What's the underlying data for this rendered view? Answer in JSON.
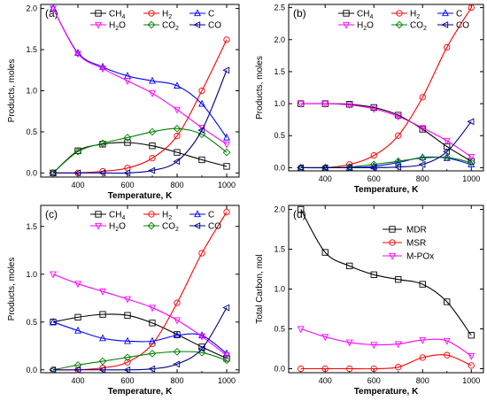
{
  "chart_data": [
    {
      "type": "line",
      "panel_label": "(a)",
      "xlabel": "Temperature, K",
      "ylabel": "Products, moles",
      "xlim": [
        250,
        1050
      ],
      "ylim": [
        -0.05,
        2.05
      ],
      "xticks": [
        400,
        600,
        800,
        1000
      ],
      "xtick_labels": [
        "400",
        "600",
        "800",
        "1000"
      ],
      "yticks": [
        0.0,
        0.5,
        1.0,
        1.5,
        2.0
      ],
      "ytick_labels": [
        "0.0",
        "0.5",
        "1.0",
        "1.5",
        "2.0"
      ],
      "legend_position": "top",
      "x": [
        300,
        400,
        500,
        600,
        700,
        800,
        900,
        1000
      ],
      "series": [
        {
          "name": "CH4",
          "name_main": "CH",
          "name_sub": "4",
          "color": "#000000",
          "marker": "square",
          "values": [
            0.0,
            0.27,
            0.35,
            0.37,
            0.33,
            0.25,
            0.16,
            0.08
          ]
        },
        {
          "name": "H2",
          "name_main": "H",
          "name_sub": "2",
          "color": "#ff0000",
          "marker": "circle",
          "values": [
            0.0,
            0.0,
            0.02,
            0.06,
            0.18,
            0.45,
            1.0,
            1.62
          ]
        },
        {
          "name": "C",
          "name_main": "C",
          "name_sub": "",
          "color": "#0000ff",
          "marker": "triangle-up",
          "values": [
            2.0,
            1.46,
            1.29,
            1.18,
            1.12,
            1.06,
            0.84,
            0.43
          ]
        },
        {
          "name": "H2O",
          "name_main": "H",
          "name_sub": "2",
          "name_tail": "O",
          "color": "#ff00ff",
          "marker": "triangle-down",
          "values": [
            2.0,
            1.45,
            1.27,
            1.12,
            0.97,
            0.77,
            0.55,
            0.35
          ]
        },
        {
          "name": "CO2",
          "name_main": "CO",
          "name_sub": "2",
          "color": "#008000",
          "marker": "diamond",
          "values": [
            0.0,
            0.26,
            0.36,
            0.43,
            0.5,
            0.54,
            0.47,
            0.25
          ]
        },
        {
          "name": "CO",
          "name_main": "CO",
          "name_sub": "",
          "color": "#00008b",
          "marker": "triangle-left",
          "values": [
            0.0,
            0.0,
            0.0,
            0.0,
            0.03,
            0.14,
            0.52,
            1.25
          ]
        }
      ]
    },
    {
      "type": "line",
      "panel_label": "(b)",
      "xlabel": "Temperature, K",
      "ylabel": "Products, moles",
      "xlim": [
        250,
        1050
      ],
      "ylim": [
        -0.05,
        2.55
      ],
      "xticks": [
        400,
        600,
        800,
        1000
      ],
      "xtick_labels": [
        "400",
        "600",
        "800",
        "1000"
      ],
      "yticks": [
        0.0,
        0.5,
        1.0,
        1.5,
        2.0,
        2.5
      ],
      "ytick_labels": [
        "0.0",
        "0.5",
        "1.0",
        "1.5",
        "2.0",
        "2.5"
      ],
      "legend_position": "top",
      "x": [
        300,
        400,
        500,
        600,
        700,
        800,
        900,
        1000
      ],
      "series": [
        {
          "name": "CH4",
          "name_main": "CH",
          "name_sub": "4",
          "color": "#000000",
          "marker": "square",
          "values": [
            1.0,
            1.0,
            0.99,
            0.94,
            0.82,
            0.6,
            0.33,
            0.1
          ]
        },
        {
          "name": "H2",
          "name_main": "H",
          "name_sub": "2",
          "color": "#ff0000",
          "marker": "circle",
          "values": [
            0.0,
            0.0,
            0.05,
            0.19,
            0.5,
            1.1,
            1.88,
            2.5
          ]
        },
        {
          "name": "C",
          "name_main": "C",
          "name_sub": "",
          "color": "#0000ff",
          "marker": "triangle-up",
          "values": [
            0.0,
            0.0,
            0.0,
            0.02,
            0.08,
            0.16,
            0.15,
            0.05
          ]
        },
        {
          "name": "H2O",
          "name_main": "H",
          "name_sub": "2",
          "name_tail": "O",
          "color": "#ff00ff",
          "marker": "triangle-down",
          "values": [
            1.0,
            1.0,
            0.98,
            0.92,
            0.8,
            0.62,
            0.42,
            0.17
          ]
        },
        {
          "name": "CO2",
          "name_main": "CO",
          "name_sub": "2",
          "color": "#008000",
          "marker": "diamond",
          "values": [
            0.0,
            0.0,
            0.01,
            0.05,
            0.1,
            0.15,
            0.16,
            0.08
          ]
        },
        {
          "name": "CO",
          "name_main": "CO",
          "name_sub": "",
          "color": "#00008b",
          "marker": "triangle-left",
          "values": [
            0.0,
            0.0,
            0.0,
            0.0,
            0.01,
            0.05,
            0.25,
            0.72
          ]
        }
      ]
    },
    {
      "type": "line",
      "panel_label": "(c)",
      "xlabel": "Temperature, K",
      "ylabel": "Products, moles",
      "xlim": [
        250,
        1050
      ],
      "ylim": [
        -0.03,
        1.72
      ],
      "xticks": [
        400,
        600,
        800,
        1000
      ],
      "xtick_labels": [
        "400",
        "600",
        "800",
        "1000"
      ],
      "yticks": [
        0.0,
        0.5,
        1.0,
        1.5
      ],
      "ytick_labels": [
        "0.0",
        "0.5",
        "1.0",
        "1.5"
      ],
      "legend_position": "top",
      "x": [
        300,
        400,
        500,
        600,
        700,
        800,
        900,
        1000
      ],
      "series": [
        {
          "name": "CH4",
          "name_main": "CH",
          "name_sub": "4",
          "color": "#000000",
          "marker": "square",
          "values": [
            0.5,
            0.55,
            0.58,
            0.57,
            0.49,
            0.37,
            0.24,
            0.12
          ]
        },
        {
          "name": "H2",
          "name_main": "H",
          "name_sub": "2",
          "color": "#ff0000",
          "marker": "circle",
          "values": [
            0.0,
            0.0,
            0.02,
            0.08,
            0.27,
            0.7,
            1.22,
            1.65
          ]
        },
        {
          "name": "C",
          "name_main": "C",
          "name_sub": "",
          "color": "#0000ff",
          "marker": "triangle-up",
          "values": [
            0.5,
            0.41,
            0.33,
            0.3,
            0.3,
            0.36,
            0.36,
            0.17
          ]
        },
        {
          "name": "H2O",
          "name_main": "H",
          "name_sub": "2",
          "name_tail": "O",
          "color": "#ff00ff",
          "marker": "triangle-down",
          "values": [
            1.0,
            0.9,
            0.82,
            0.74,
            0.65,
            0.52,
            0.35,
            0.15
          ]
        },
        {
          "name": "CO2",
          "name_main": "CO",
          "name_sub": "2",
          "color": "#008000",
          "marker": "diamond",
          "values": [
            0.0,
            0.05,
            0.09,
            0.13,
            0.17,
            0.19,
            0.18,
            0.1
          ]
        },
        {
          "name": "CO",
          "name_main": "CO",
          "name_sub": "",
          "color": "#00008b",
          "marker": "triangle-left",
          "values": [
            0.0,
            0.0,
            0.0,
            0.0,
            0.01,
            0.06,
            0.22,
            0.65
          ]
        }
      ]
    },
    {
      "type": "line",
      "panel_label": "(d)",
      "xlabel": "Temperature, K",
      "ylabel": "Total Carbon, mol",
      "xlim": [
        250,
        1050
      ],
      "ylim": [
        -0.05,
        2.05
      ],
      "xticks": [
        400,
        600,
        800,
        1000
      ],
      "xtick_labels": [
        "400",
        "600",
        "800",
        "1000"
      ],
      "yticks": [
        0.0,
        0.5,
        1.0,
        1.5,
        2.0
      ],
      "ytick_labels": [
        "0.0",
        "0.5",
        "1.0",
        "1.5",
        "2.0"
      ],
      "legend_position": "top-right",
      "x": [
        300,
        400,
        500,
        600,
        700,
        800,
        900,
        1000
      ],
      "series": [
        {
          "name": "MDR",
          "name_main": "MDR",
          "name_sub": "",
          "color": "#000000",
          "marker": "square",
          "values": [
            2.0,
            1.46,
            1.29,
            1.18,
            1.12,
            1.06,
            0.84,
            0.42
          ]
        },
        {
          "name": "MSR",
          "name_main": "MSR",
          "name_sub": "",
          "color": "#ff0000",
          "marker": "circle",
          "values": [
            0.0,
            0.0,
            0.0,
            0.0,
            0.02,
            0.14,
            0.17,
            0.04
          ]
        },
        {
          "name": "M-POx",
          "name_main": "M-POx",
          "name_sub": "",
          "color": "#ff00ff",
          "marker": "triangle-down",
          "values": [
            0.5,
            0.4,
            0.33,
            0.3,
            0.31,
            0.36,
            0.35,
            0.16
          ]
        }
      ]
    }
  ]
}
